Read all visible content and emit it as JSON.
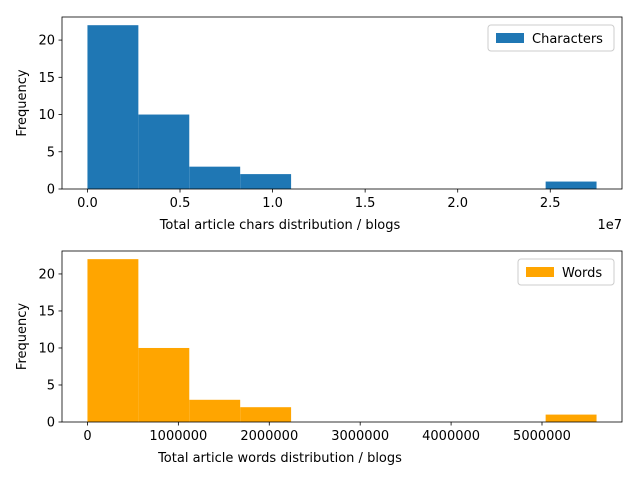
{
  "chart_data": [
    {
      "type": "bar",
      "subtype": "histogram",
      "xlabel": "Total article chars distribution / blogs",
      "ylabel": "Frequency",
      "x_offset_label": "1e7",
      "xlim": [
        -1375000,
        28875000
      ],
      "ylim": [
        0,
        23.1
      ],
      "xticks": [
        0,
        5000000,
        10000000,
        15000000,
        20000000,
        25000000
      ],
      "xtick_labels": [
        "0.0",
        "0.5",
        "1.0",
        "1.5",
        "2.0",
        "2.5"
      ],
      "yticks": [
        0,
        5,
        10,
        15,
        20
      ],
      "ytick_labels": [
        "0",
        "5",
        "10",
        "15",
        "20"
      ],
      "bin_edges": [
        0,
        2750000,
        5500000,
        8250000,
        11000000,
        13750000,
        16500000,
        19250000,
        22000000,
        24750000,
        27500000
      ],
      "counts": [
        22,
        10,
        3,
        2,
        0,
        0,
        0,
        0,
        0,
        1
      ],
      "legend": {
        "label": "Characters",
        "position": "upper right"
      },
      "color": "#1f77b4",
      "grid": false
    },
    {
      "type": "bar",
      "subtype": "histogram",
      "xlabel": "Total article words distribution  / blogs",
      "ylabel": "Frequency",
      "xlim": [
        -280000,
        5880000
      ],
      "ylim": [
        0,
        23.1
      ],
      "xticks": [
        0,
        1000000,
        2000000,
        3000000,
        4000000,
        5000000
      ],
      "xtick_labels": [
        "0",
        "1000000",
        "2000000",
        "3000000",
        "4000000",
        "5000000"
      ],
      "yticks": [
        0,
        5,
        10,
        15,
        20
      ],
      "ytick_labels": [
        "0",
        "5",
        "10",
        "15",
        "20"
      ],
      "bin_edges": [
        0,
        560000,
        1120000,
        1680000,
        2240000,
        2800000,
        3360000,
        3920000,
        4480000,
        5040000,
        5600000
      ],
      "counts": [
        22,
        10,
        3,
        2,
        0,
        0,
        0,
        0,
        0,
        1
      ],
      "legend": {
        "label": "Words",
        "position": "upper right"
      },
      "color": "#ffa500",
      "grid": false
    }
  ]
}
